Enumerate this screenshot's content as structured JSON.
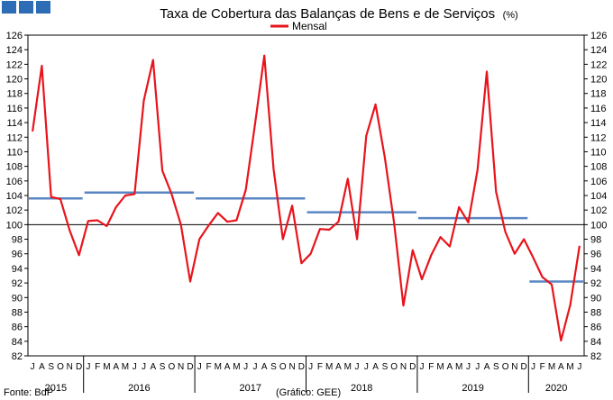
{
  "chart_data": {
    "type": "line",
    "title": "Taxa de Cobertura das Balanças de Bens e de Serviços",
    "title_unit": "(%)",
    "ylim": [
      82,
      126
    ],
    "y_ticks": [
      82,
      84,
      86,
      88,
      90,
      92,
      94,
      96,
      98,
      100,
      102,
      104,
      106,
      108,
      110,
      112,
      114,
      116,
      118,
      120,
      122,
      124,
      126
    ],
    "grid": false,
    "legend_position": "top-center",
    "month_labels": [
      "J",
      "A",
      "S",
      "O",
      "N",
      "D",
      "J",
      "F",
      "M",
      "A",
      "M",
      "J",
      "J",
      "A",
      "S",
      "O",
      "N",
      "D",
      "J",
      "F",
      "M",
      "A",
      "M",
      "J",
      "J",
      "A",
      "S",
      "O",
      "N",
      "D",
      "J",
      "F",
      "M",
      "A",
      "M",
      "J",
      "J",
      "A",
      "S",
      "O",
      "N",
      "D",
      "J",
      "F",
      "M",
      "A",
      "M",
      "J",
      "J",
      "A",
      "S",
      "O",
      "N",
      "D",
      "J",
      "F",
      "M",
      "A",
      "M",
      "J"
    ],
    "years": [
      {
        "label": "2015",
        "start": 0,
        "end": 6
      },
      {
        "label": "2016",
        "start": 6,
        "end": 18
      },
      {
        "label": "2017",
        "start": 18,
        "end": 30
      },
      {
        "label": "2018",
        "start": 30,
        "end": 42
      },
      {
        "label": "2019",
        "start": 42,
        "end": 54
      },
      {
        "label": "2020",
        "start": 54,
        "end": 60
      }
    ],
    "series": [
      {
        "name": "Mensal",
        "color": "#e8141c",
        "values": [
          112.8,
          121.8,
          103.8,
          103.5,
          99.2,
          95.8,
          100.5,
          100.6,
          99.8,
          102.4,
          104.0,
          104.2,
          117.0,
          122.6,
          107.4,
          104.2,
          100.0,
          92.2,
          98.0,
          99.9,
          101.6,
          100.4,
          100.6,
          104.8,
          113.8,
          123.2,
          107.6,
          98.0,
          102.6,
          94.7,
          96.0,
          99.4,
          99.3,
          100.4,
          106.3,
          98.0,
          112.2,
          116.5,
          109.2,
          100.2,
          88.9,
          96.5,
          92.5,
          95.8,
          98.3,
          97.0,
          102.4,
          100.3,
          107.5,
          121.0,
          104.5,
          99.0,
          96.0,
          98.0,
          95.5,
          92.8,
          91.8,
          84.1,
          89.0,
          97.1
        ]
      }
    ],
    "annual_averages": {
      "color": "#5a86c4",
      "segments": [
        {
          "label": "2015",
          "start": 0,
          "end": 6,
          "value": 103.6
        },
        {
          "label": "2016",
          "start": 6,
          "end": 18,
          "value": 104.4
        },
        {
          "label": "2017",
          "start": 18,
          "end": 30,
          "value": 103.6
        },
        {
          "label": "2018",
          "start": 30,
          "end": 42,
          "value": 101.7
        },
        {
          "label": "2019",
          "start": 42,
          "end": 54,
          "value": 100.9
        },
        {
          "label": "2020",
          "start": 54,
          "end": 60,
          "value": 92.2
        }
      ]
    },
    "reference_line": {
      "value": 100,
      "color": "#000000"
    }
  },
  "footer": {
    "source": "Fonte: BdP",
    "graph_credit": "(Gráfico: GEE)"
  }
}
